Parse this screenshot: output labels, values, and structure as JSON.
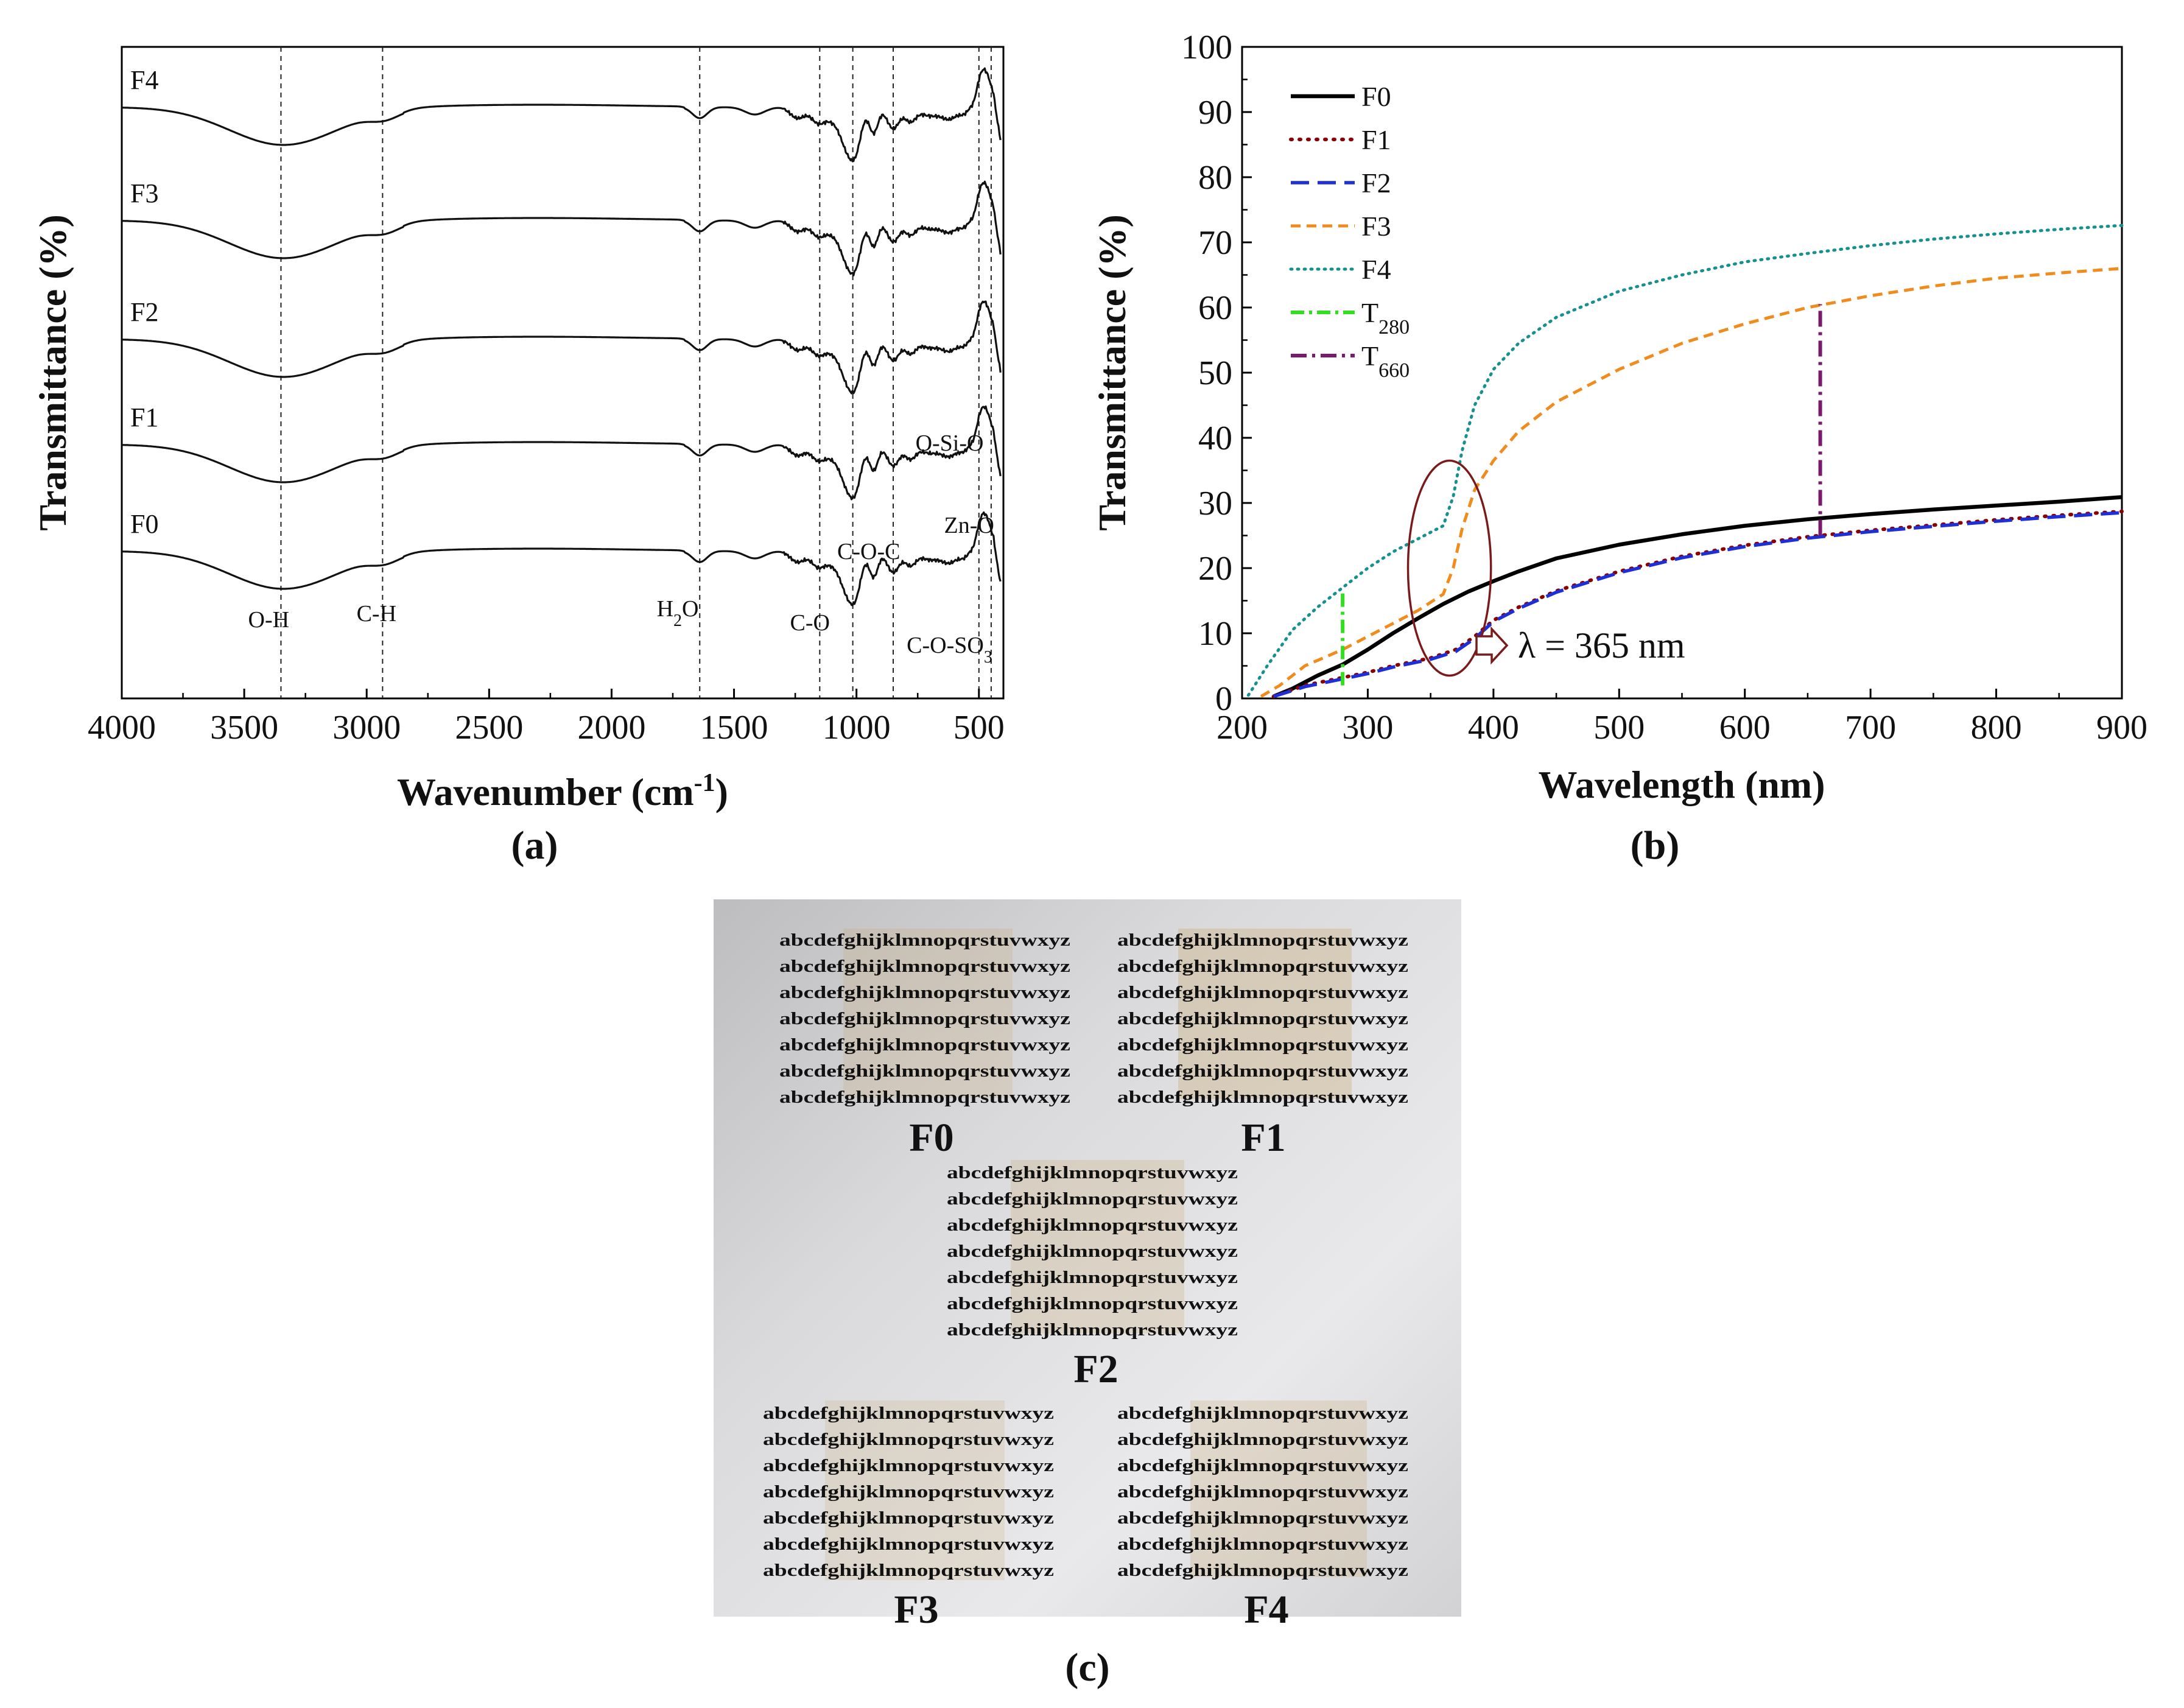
{
  "chart_data": [
    {
      "panel": "a",
      "type": "line",
      "panel_label": "(a)",
      "xlabel": "Wavenumber (cm",
      "xlabel_sup": "-1",
      "xlabel_end": ")",
      "ylabel": "Transmittance (%)",
      "xlim": [
        4000,
        400
      ],
      "x_ticks": [
        "4000",
        "3500",
        "3000",
        "2500",
        "2000",
        "1500",
        "1000",
        "500"
      ],
      "series_names": [
        "F4",
        "F3",
        "F2",
        "F1",
        "F0"
      ],
      "reference_lines": [
        3350,
        2935,
        1640,
        1150,
        1015,
        850,
        500,
        450
      ],
      "peak_labels": [
        {
          "text": "O-H",
          "x": 3400
        },
        {
          "text": "C-H",
          "x": 2960
        },
        {
          "text": "H",
          "sub": "2",
          "end": "O",
          "x": 1730
        },
        {
          "text": "C-O",
          "x": 1190
        },
        {
          "text": "C-O-C",
          "x": 950
        },
        {
          "text": "O-Si-O",
          "x": 620
        },
        {
          "text": "Zn-O",
          "x": 540
        },
        {
          "text": "C-O-SO",
          "sub": "3",
          "end": "",
          "x": 620
        }
      ]
    },
    {
      "panel": "b",
      "type": "line",
      "panel_label": "(b)",
      "xlabel": "Wavelength (nm)",
      "ylabel": "Transmittance (%)",
      "xlim": [
        200,
        900
      ],
      "ylim": [
        0,
        100
      ],
      "x_ticks": [
        "200",
        "300",
        "400",
        "500",
        "600",
        "700",
        "800",
        "900"
      ],
      "y_ticks": [
        "0",
        "10",
        "20",
        "30",
        "40",
        "50",
        "60",
        "70",
        "80",
        "90",
        "100"
      ],
      "annotation": "λ = 365 nm",
      "legend": [
        {
          "name": "F0"
        },
        {
          "name": "F1"
        },
        {
          "name": "F2"
        },
        {
          "name": "F3"
        },
        {
          "name": "F4"
        },
        {
          "name": "T",
          "sub": "280"
        },
        {
          "name": "T",
          "sub": "660"
        }
      ],
      "series": [
        {
          "name": "F0",
          "color": "#000000",
          "x": [
            225,
            240,
            260,
            280,
            300,
            320,
            340,
            360,
            380,
            400,
            420,
            450,
            500,
            550,
            600,
            650,
            700,
            750,
            800,
            850,
            900
          ],
          "y": [
            0.3,
            1.5,
            3.5,
            5.2,
            7.5,
            10.0,
            12.3,
            14.5,
            16.4,
            18.0,
            19.5,
            21.5,
            23.6,
            25.2,
            26.5,
            27.5,
            28.3,
            29.0,
            29.6,
            30.2,
            30.9
          ]
        },
        {
          "name": "F1",
          "color": "#8b0000",
          "x": [
            225,
            250,
            280,
            300,
            320,
            350,
            370,
            385,
            400,
            420,
            450,
            500,
            550,
            600,
            650,
            700,
            750,
            800,
            850,
            900
          ],
          "y": [
            0.3,
            2.0,
            3.2,
            4.0,
            5.0,
            6.2,
            7.5,
            9.5,
            12.0,
            14.0,
            16.5,
            19.5,
            21.8,
            23.5,
            24.8,
            25.8,
            26.6,
            27.4,
            28.1,
            28.7
          ]
        },
        {
          "name": "F2",
          "color": "#1f2fd6",
          "x": [
            225,
            250,
            280,
            300,
            320,
            350,
            370,
            385,
            400,
            420,
            450,
            500,
            550,
            600,
            650,
            700,
            750,
            800,
            850,
            900
          ],
          "y": [
            0.3,
            1.8,
            3.0,
            3.8,
            4.8,
            6.0,
            7.2,
            9.2,
            11.8,
            13.8,
            16.3,
            19.3,
            21.6,
            23.3,
            24.6,
            25.6,
            26.4,
            27.2,
            27.9,
            28.5
          ]
        },
        {
          "name": "F3",
          "color": "#f08c1e",
          "x": [
            215,
            230,
            250,
            280,
            300,
            320,
            340,
            360,
            368,
            375,
            385,
            400,
            420,
            450,
            500,
            550,
            600,
            650,
            700,
            750,
            800,
            850,
            900
          ],
          "y": [
            0.3,
            2.0,
            5.0,
            7.5,
            9.5,
            11.5,
            13.5,
            16.0,
            20.0,
            26.0,
            32.0,
            36.5,
            41.0,
            45.5,
            50.5,
            54.5,
            57.5,
            60.0,
            61.8,
            63.3,
            64.5,
            65.3,
            66.0
          ]
        },
        {
          "name": "F4",
          "color": "#17918e",
          "x": [
            205,
            220,
            240,
            260,
            280,
            300,
            320,
            340,
            360,
            368,
            375,
            385,
            400,
            420,
            450,
            500,
            550,
            600,
            650,
            700,
            750,
            800,
            850,
            900
          ],
          "y": [
            0.5,
            5.0,
            10.5,
            14.0,
            17.0,
            20.0,
            22.5,
            24.5,
            26.5,
            31.0,
            38.0,
            45.0,
            50.5,
            54.5,
            58.5,
            62.5,
            65.0,
            67.0,
            68.3,
            69.5,
            70.5,
            71.3,
            72.0,
            72.6
          ]
        }
      ],
      "marker_lines": [
        {
          "name": "T280",
          "x": 280,
          "y0": 2,
          "y1": 16.5,
          "color": "#33dd22"
        },
        {
          "name": "T660",
          "x": 660,
          "y0": 25,
          "y1": 60.5,
          "color": "#7a1a6e"
        }
      ],
      "ellipse": {
        "cx": 365,
        "cy": 20,
        "rx": 33,
        "ry": 16.5,
        "color": "#7a1a1a"
      }
    }
  ],
  "photo": {
    "panel_label": "(c)",
    "text_line": "abcdefghijklmnopqrstuvwxyz",
    "samples": [
      "F0",
      "F1",
      "F2",
      "F3",
      "F4"
    ]
  }
}
